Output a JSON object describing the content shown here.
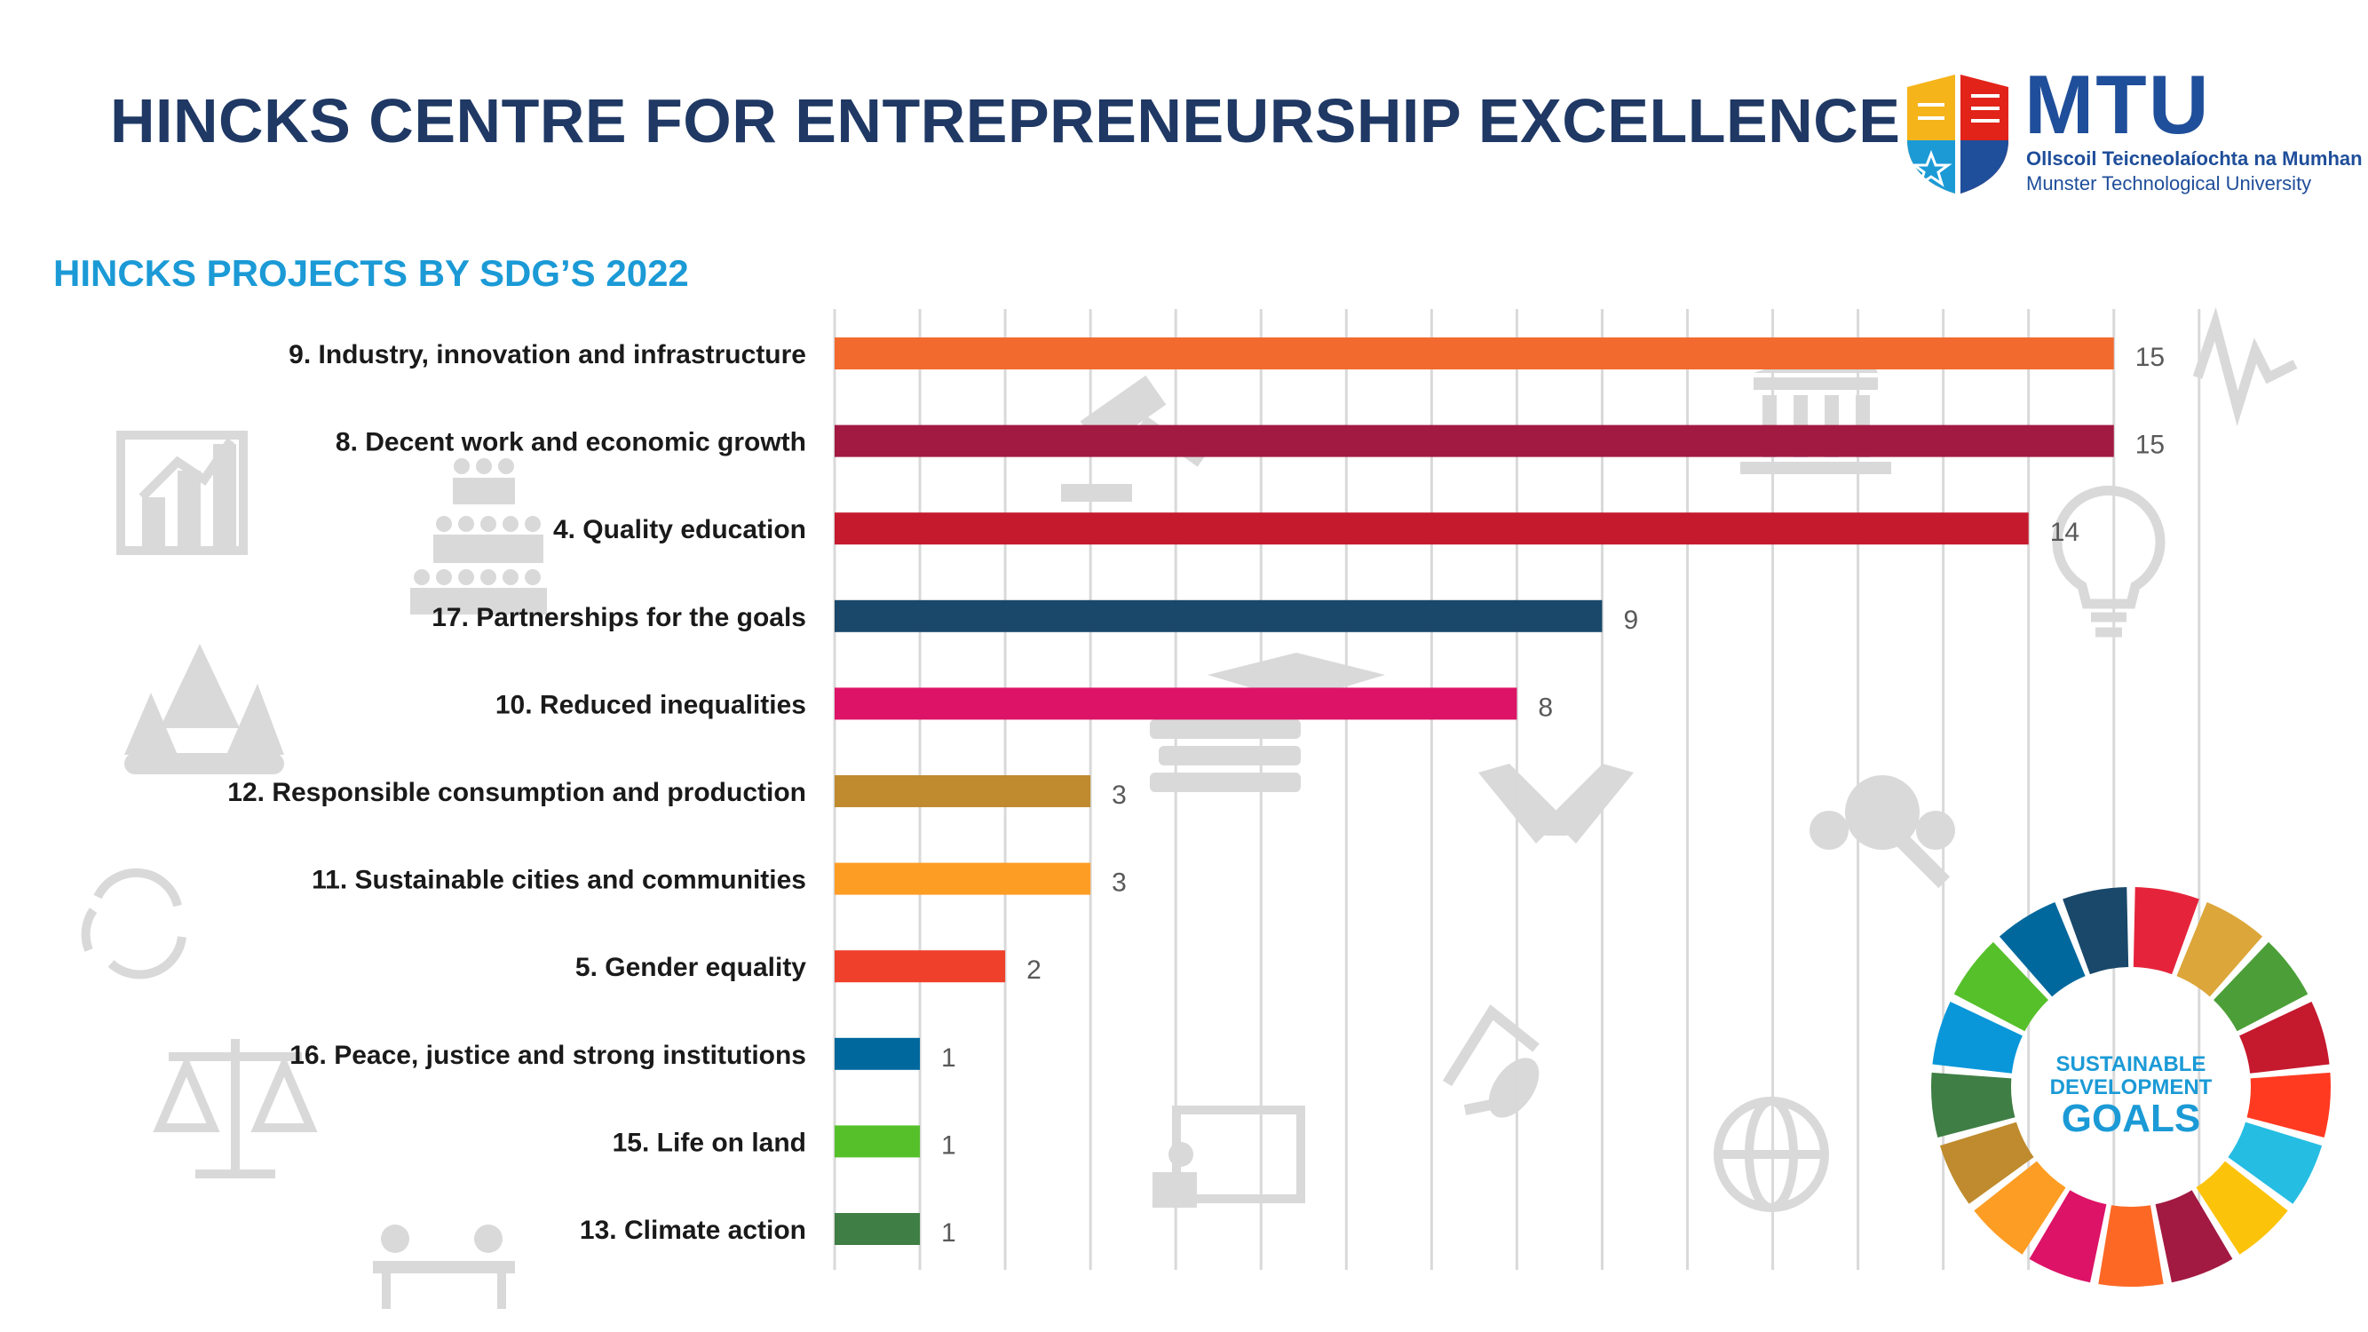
{
  "header": {
    "title": "HINCKS CENTRE FOR ENTREPRENEURSHIP EXCELLENCE",
    "subtitle": "HINCKS PROJECTS BY SDG’S 2022"
  },
  "logo": {
    "name": "MTU",
    "line1": "Ollscoil Teicneolaíochta na Mumhan",
    "line2": "Munster Technological University"
  },
  "sdg_wheel": {
    "line1": "SUSTAINABLE",
    "line2": "DEVELOPMENT",
    "line3": "GOALS"
  },
  "chart_data": {
    "type": "bar",
    "orientation": "horizontal",
    "title": "HINCKS PROJECTS BY SDG’S 2022",
    "xlabel": "",
    "ylabel": "",
    "xlim": [
      0,
      15
    ],
    "grid": true,
    "categories": [
      "9. Industry, innovation and infrastructure",
      "8. Decent work and economic growth",
      "4. Quality education",
      "17. Partnerships for the goals",
      "10. Reduced inequalities",
      "12. Responsible consumption and production",
      "11. Sustainable cities and communities",
      "5. Gender equality",
      "16. Peace, justice and strong institutions",
      "15. Life on land",
      "13. Climate action"
    ],
    "values": [
      15,
      15,
      14,
      9,
      8,
      3,
      3,
      2,
      1,
      1,
      1
    ],
    "colors": [
      "#f26a2e",
      "#a21942",
      "#c5192d",
      "#19486a",
      "#dd1367",
      "#bf8b2e",
      "#fd9d24",
      "#ef402b",
      "#00689d",
      "#56c02b",
      "#3f7e44"
    ]
  }
}
